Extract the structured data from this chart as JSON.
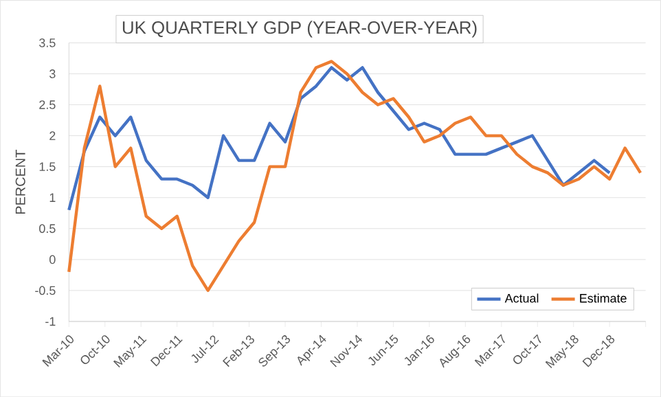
{
  "chart_data": {
    "type": "line",
    "title": "UK QUARTERLY GDP (YEAR-OVER-YEAR)",
    "ylabel": "PERCENT",
    "x": [
      "2010-03",
      "2010-06",
      "2010-09",
      "2010-12",
      "2011-03",
      "2011-06",
      "2011-09",
      "2011-12",
      "2012-03",
      "2012-06",
      "2012-09",
      "2012-12",
      "2013-03",
      "2013-06",
      "2013-09",
      "2013-12",
      "2014-03",
      "2014-06",
      "2014-09",
      "2014-12",
      "2015-03",
      "2015-06",
      "2015-09",
      "2015-12",
      "2016-03",
      "2016-06",
      "2016-09",
      "2016-12",
      "2017-03",
      "2017-06",
      "2017-09",
      "2017-12",
      "2018-03",
      "2018-06",
      "2018-09",
      "2018-12",
      "2019-03",
      "2019-06"
    ],
    "series": [
      {
        "name": "Actual",
        "color": "#4472c4",
        "values": [
          0.8,
          1.75,
          2.3,
          2.0,
          2.3,
          1.6,
          1.3,
          1.3,
          1.2,
          1.0,
          2.0,
          1.6,
          1.6,
          2.2,
          1.9,
          2.6,
          2.8,
          3.1,
          2.9,
          3.1,
          2.7,
          2.4,
          2.1,
          2.2,
          2.1,
          1.7,
          1.7,
          1.7,
          1.8,
          1.9,
          2.0,
          1.6,
          1.2,
          1.4,
          1.6,
          1.4,
          null,
          null
        ]
      },
      {
        "name": "Estimate",
        "color": "#ed7d31",
        "values": [
          -0.2,
          1.8,
          2.8,
          1.5,
          1.8,
          0.7,
          0.5,
          0.7,
          -0.1,
          -0.5,
          -0.1,
          0.3,
          0.6,
          1.5,
          1.5,
          2.7,
          3.1,
          3.2,
          3.0,
          2.7,
          2.5,
          2.6,
          2.3,
          1.9,
          2.0,
          2.2,
          2.3,
          2.0,
          2.0,
          1.7,
          1.5,
          1.4,
          1.2,
          1.3,
          1.5,
          1.3,
          1.8,
          1.4
        ]
      }
    ],
    "xlim": [
      "2010-03",
      "2019-07"
    ],
    "xticks": [
      {
        "value": "2010-03",
        "label": "Mar-10"
      },
      {
        "value": "2010-10",
        "label": "Oct-10"
      },
      {
        "value": "2011-05",
        "label": "May-11"
      },
      {
        "value": "2011-12",
        "label": "Dec-11"
      },
      {
        "value": "2012-07",
        "label": "Jul-12"
      },
      {
        "value": "2013-02",
        "label": "Feb-13"
      },
      {
        "value": "2013-09",
        "label": "Sep-13"
      },
      {
        "value": "2014-04",
        "label": "Apr-14"
      },
      {
        "value": "2014-11",
        "label": "Nov-14"
      },
      {
        "value": "2015-06",
        "label": "Jun-15"
      },
      {
        "value": "2016-01",
        "label": "Jan-16"
      },
      {
        "value": "2016-08",
        "label": "Aug-16"
      },
      {
        "value": "2017-03",
        "label": "Mar-17"
      },
      {
        "value": "2017-10",
        "label": "Oct-17"
      },
      {
        "value": "2018-05",
        "label": "May-18"
      },
      {
        "value": "2018-12",
        "label": "Dec-18"
      },
      {
        "value": "2019-07",
        "label": null
      }
    ],
    "ylim": [
      -1,
      3.5
    ],
    "yticks": [
      -1,
      -0.5,
      0,
      0.5,
      1,
      1.5,
      2,
      2.5,
      3,
      3.5
    ],
    "grid": "y",
    "legend": "bottom right",
    "marker": "none",
    "line_style": "solid"
  }
}
